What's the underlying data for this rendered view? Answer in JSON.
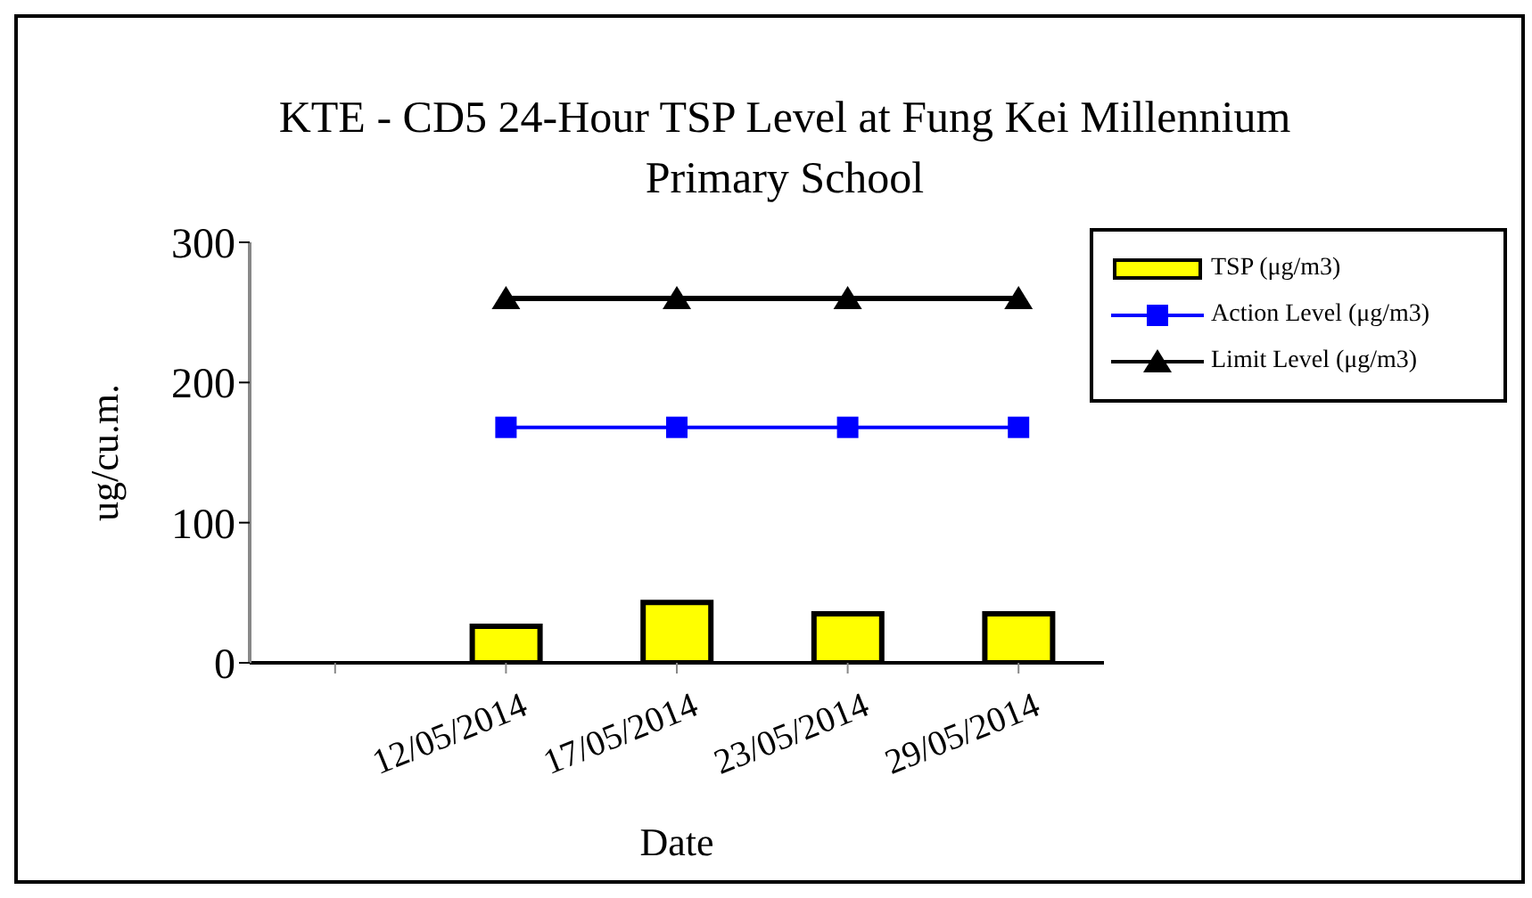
{
  "chart_data": {
    "type": "bar",
    "title": "KTE - CD5 24-Hour TSP Level at Fung Kei Millennium Primary School",
    "xlabel": "Date",
    "ylabel": "ug/cu.m.",
    "categories": [
      null,
      "12/05/2014",
      "17/05/2014",
      "23/05/2014",
      "29/05/2014"
    ],
    "series": [
      {
        "name": "TSP (μg/m3)",
        "color": "#ffff00",
        "values": [
          null,
          26,
          43,
          35,
          35
        ]
      },
      {
        "name": "Action Level (μg/m3)",
        "type": "line",
        "color": "#0000ff",
        "marker": "square",
        "values": [
          null,
          168,
          168,
          168,
          168
        ]
      },
      {
        "name": "Limit Level (μg/m3)",
        "type": "line",
        "color": "#000000",
        "marker": "triangle",
        "values": [
          null,
          260,
          260,
          260,
          260
        ]
      }
    ],
    "ylim": [
      0,
      300
    ],
    "yticks": [
      0,
      100,
      200,
      300
    ],
    "legend": "right"
  }
}
